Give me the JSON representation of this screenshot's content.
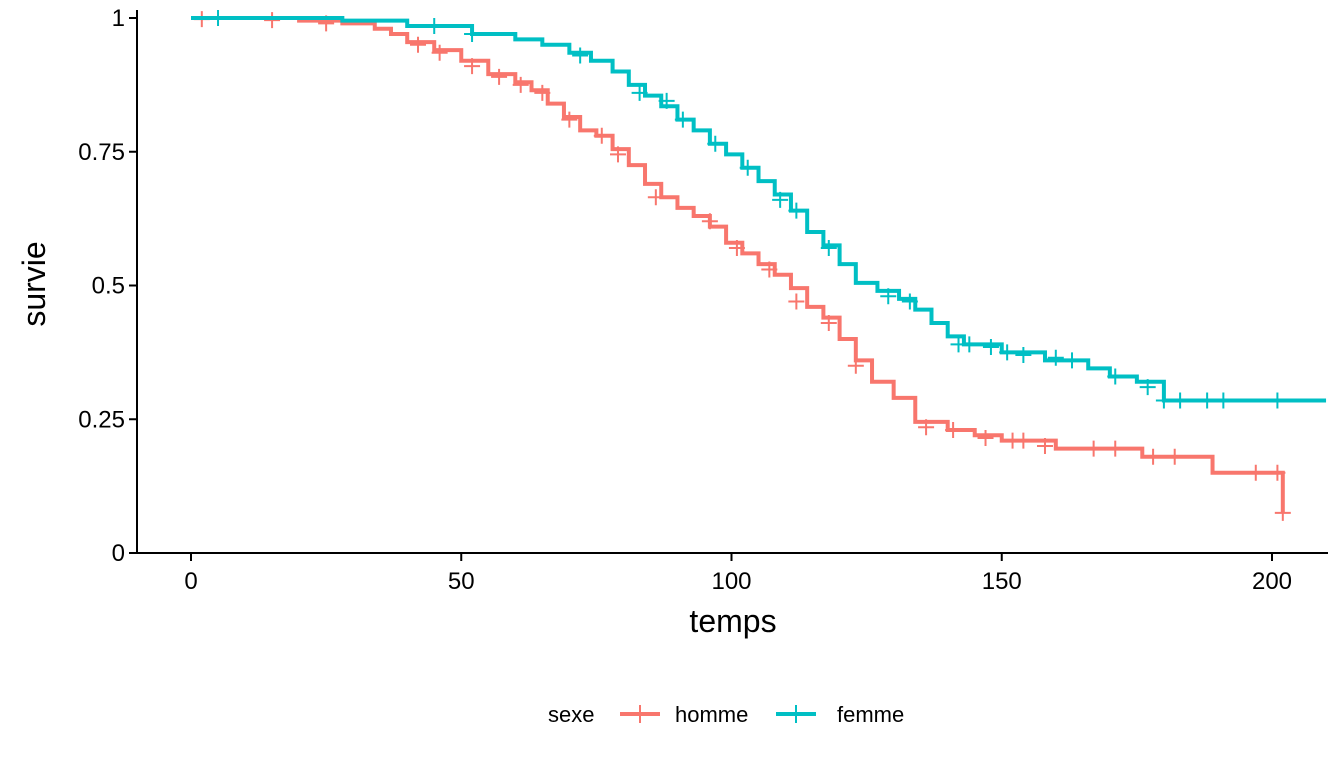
{
  "chart_data": {
    "type": "line",
    "subtype": "step",
    "title": "",
    "xlabel": "temps",
    "ylabel": "survie",
    "xlim": [
      -10,
      210
    ],
    "ylim": [
      0,
      1
    ],
    "x_ticks": [
      0,
      50,
      100,
      150,
      200
    ],
    "x_tick_labels": [
      "0",
      "50",
      "100",
      "150",
      "200"
    ],
    "y_ticks": [
      0,
      0.25,
      0.5,
      0.75,
      1
    ],
    "y_tick_labels": [
      "0",
      "0.25",
      "0.5",
      "0.75",
      "1"
    ],
    "grid": false,
    "legend": {
      "title": "sexe",
      "position": "bottom",
      "entries": [
        "homme",
        "femme"
      ]
    },
    "series": [
      {
        "name": "homme",
        "color": "#F8766D",
        "points": [
          [
            0,
            1
          ],
          [
            20,
            0.995
          ],
          [
            28,
            0.99
          ],
          [
            34,
            0.98
          ],
          [
            37,
            0.97
          ],
          [
            40,
            0.955
          ],
          [
            45,
            0.94
          ],
          [
            50,
            0.92
          ],
          [
            55,
            0.895
          ],
          [
            60,
            0.88
          ],
          [
            63,
            0.865
          ],
          [
            66,
            0.84
          ],
          [
            69,
            0.815
          ],
          [
            72,
            0.79
          ],
          [
            75,
            0.78
          ],
          [
            78,
            0.755
          ],
          [
            81,
            0.725
          ],
          [
            84,
            0.69
          ],
          [
            87,
            0.665
          ],
          [
            90,
            0.645
          ],
          [
            93,
            0.63
          ],
          [
            96,
            0.61
          ],
          [
            99,
            0.58
          ],
          [
            102,
            0.56
          ],
          [
            105,
            0.54
          ],
          [
            108,
            0.52
          ],
          [
            111,
            0.495
          ],
          [
            114,
            0.46
          ],
          [
            117,
            0.44
          ],
          [
            120,
            0.4
          ],
          [
            123,
            0.36
          ],
          [
            126,
            0.32
          ],
          [
            130,
            0.29
          ],
          [
            134,
            0.245
          ],
          [
            140,
            0.23
          ],
          [
            145,
            0.22
          ],
          [
            150,
            0.21
          ],
          [
            160,
            0.195
          ],
          [
            176,
            0.18
          ],
          [
            189,
            0.15
          ],
          [
            202,
            0.075
          ]
        ],
        "censor_marks": [
          [
            2,
            0.998
          ],
          [
            15,
            0.996
          ],
          [
            25,
            0.99
          ],
          [
            42,
            0.95
          ],
          [
            46,
            0.935
          ],
          [
            52,
            0.91
          ],
          [
            57,
            0.89
          ],
          [
            61,
            0.875
          ],
          [
            65,
            0.86
          ],
          [
            70,
            0.81
          ],
          [
            76,
            0.78
          ],
          [
            79,
            0.745
          ],
          [
            86,
            0.665
          ],
          [
            96,
            0.62
          ],
          [
            101,
            0.57
          ],
          [
            107,
            0.53
          ],
          [
            112,
            0.47
          ],
          [
            118,
            0.43
          ],
          [
            123,
            0.35
          ],
          [
            136,
            0.235
          ],
          [
            141,
            0.23
          ],
          [
            147,
            0.215
          ],
          [
            152,
            0.21
          ],
          [
            154,
            0.21
          ],
          [
            158,
            0.2
          ],
          [
            167,
            0.195
          ],
          [
            171,
            0.195
          ],
          [
            178,
            0.18
          ],
          [
            182,
            0.18
          ],
          [
            197,
            0.15
          ],
          [
            201,
            0.15
          ],
          [
            202,
            0.075
          ]
        ]
      },
      {
        "name": "femme",
        "color": "#00BFC4",
        "points": [
          [
            0,
            1
          ],
          [
            28,
            0.995
          ],
          [
            40,
            0.985
          ],
          [
            52,
            0.97
          ],
          [
            60,
            0.96
          ],
          [
            65,
            0.95
          ],
          [
            70,
            0.935
          ],
          [
            74,
            0.92
          ],
          [
            78,
            0.9
          ],
          [
            81,
            0.875
          ],
          [
            84,
            0.855
          ],
          [
            87,
            0.835
          ],
          [
            90,
            0.81
          ],
          [
            93,
            0.79
          ],
          [
            96,
            0.765
          ],
          [
            99,
            0.745
          ],
          [
            102,
            0.72
          ],
          [
            105,
            0.695
          ],
          [
            108,
            0.67
          ],
          [
            111,
            0.64
          ],
          [
            114,
            0.6
          ],
          [
            117,
            0.575
          ],
          [
            120,
            0.54
          ],
          [
            123,
            0.505
          ],
          [
            127,
            0.49
          ],
          [
            131,
            0.475
          ],
          [
            134,
            0.455
          ],
          [
            137,
            0.43
          ],
          [
            140,
            0.405
          ],
          [
            143,
            0.39
          ],
          [
            150,
            0.375
          ],
          [
            158,
            0.36
          ],
          [
            166,
            0.345
          ],
          [
            170,
            0.33
          ],
          [
            175,
            0.32
          ],
          [
            180,
            0.285
          ],
          [
            210,
            0.285
          ]
        ],
        "censor_marks": [
          [
            5,
            1
          ],
          [
            45,
            0.985
          ],
          [
            52,
            0.97
          ],
          [
            72,
            0.93
          ],
          [
            83,
            0.86
          ],
          [
            88,
            0.845
          ],
          [
            91,
            0.81
          ],
          [
            97,
            0.765
          ],
          [
            103,
            0.72
          ],
          [
            109,
            0.66
          ],
          [
            112,
            0.64
          ],
          [
            118,
            0.57
          ],
          [
            129,
            0.48
          ],
          [
            133,
            0.47
          ],
          [
            142,
            0.39
          ],
          [
            144,
            0.39
          ],
          [
            148,
            0.385
          ],
          [
            151,
            0.375
          ],
          [
            154,
            0.37
          ],
          [
            160,
            0.365
          ],
          [
            163,
            0.36
          ],
          [
            171,
            0.33
          ],
          [
            177,
            0.31
          ],
          [
            180,
            0.285
          ],
          [
            183,
            0.285
          ],
          [
            188,
            0.285
          ],
          [
            191,
            0.285
          ],
          [
            201,
            0.285
          ]
        ]
      }
    ]
  }
}
